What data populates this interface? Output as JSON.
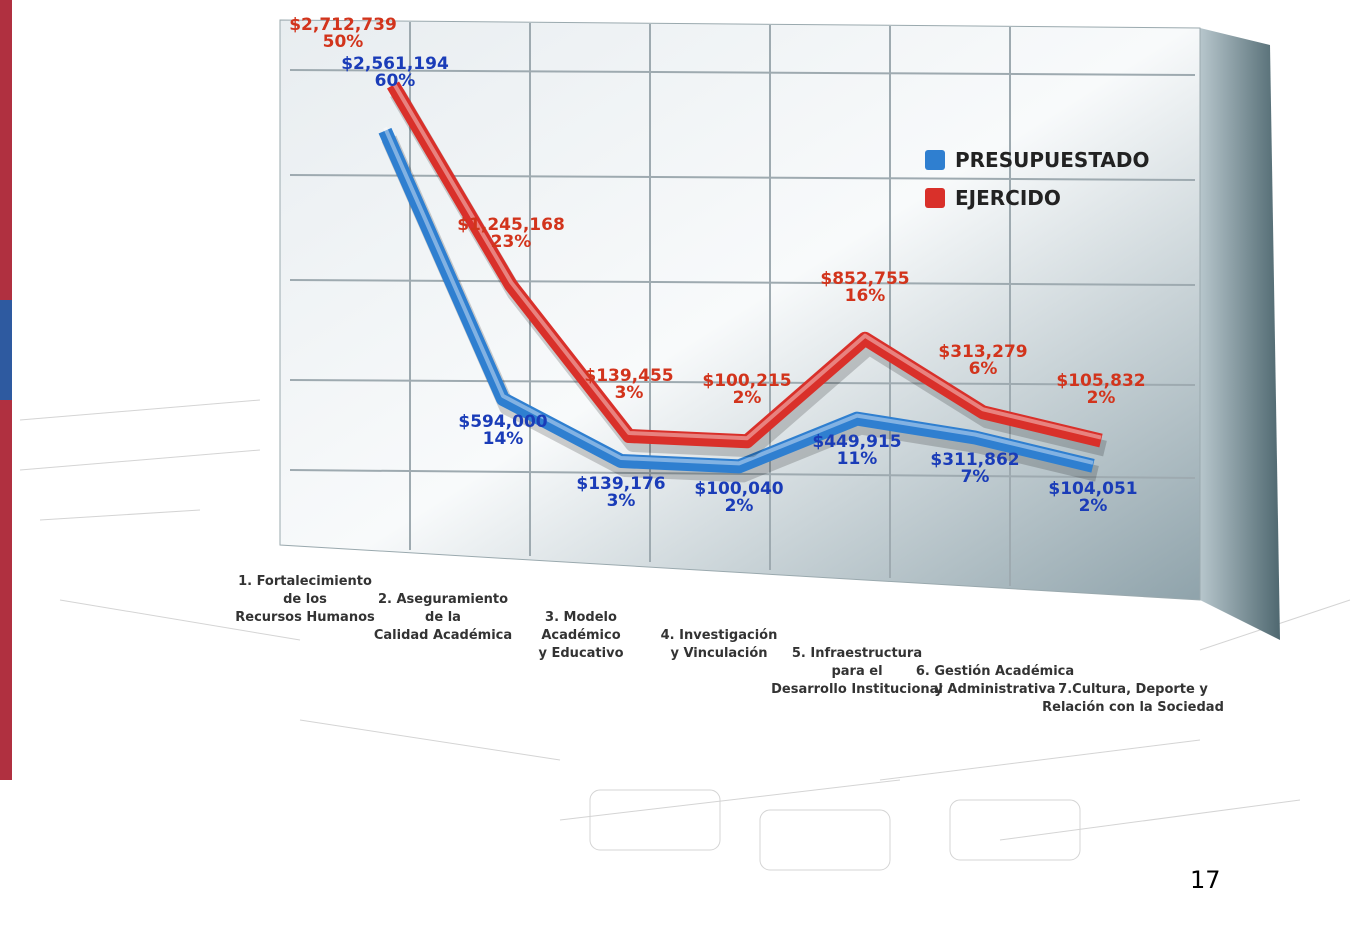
{
  "chart_data": {
    "type": "line",
    "categories": [
      "1. Fortalecimiento\nde los\nRecursos Humanos",
      "2. Aseguramiento\nde la\nCalidad Académica",
      "3. Modelo\nAcadémico\ny Educativo",
      "4. Investigación\ny Vinculación",
      "5. Infraestructura\npara el\nDesarrollo Institucional",
      "6. Gestión Académica\ny Administrativa",
      "7.Cultura, Deporte y\nRelación con la Sociedad"
    ],
    "series": [
      {
        "name": "PRESUPUESTADO",
        "color": "#2f7fd0",
        "label_color": "#1a3cb8",
        "values": [
          2561194,
          594000,
          139176,
          100040,
          449915,
          311862,
          104051
        ],
        "value_labels": [
          "$2,561,194",
          "$594,000",
          "$139,176",
          "$100,040",
          "$449,915",
          "$311,862",
          "$104,051"
        ],
        "share_labels": [
          "60%",
          "14%",
          "3%",
          "2%",
          "11%",
          "7%",
          "2%"
        ]
      },
      {
        "name": "EJERCIDO",
        "color": "#d9302a",
        "label_color": "#d2341c",
        "values": [
          2712739,
          1245168,
          139455,
          100215,
          852755,
          313279,
          105832
        ],
        "value_labels": [
          "$2,712,739",
          "$1,245,168",
          "$139,455",
          "$100,215",
          "$852,755",
          "$313,279",
          "$105,832"
        ],
        "share_labels": [
          "50%",
          "23%",
          "3%",
          "2%",
          "16%",
          "6%",
          "2%"
        ]
      }
    ],
    "legend": "upper right"
  },
  "page_number": "17"
}
